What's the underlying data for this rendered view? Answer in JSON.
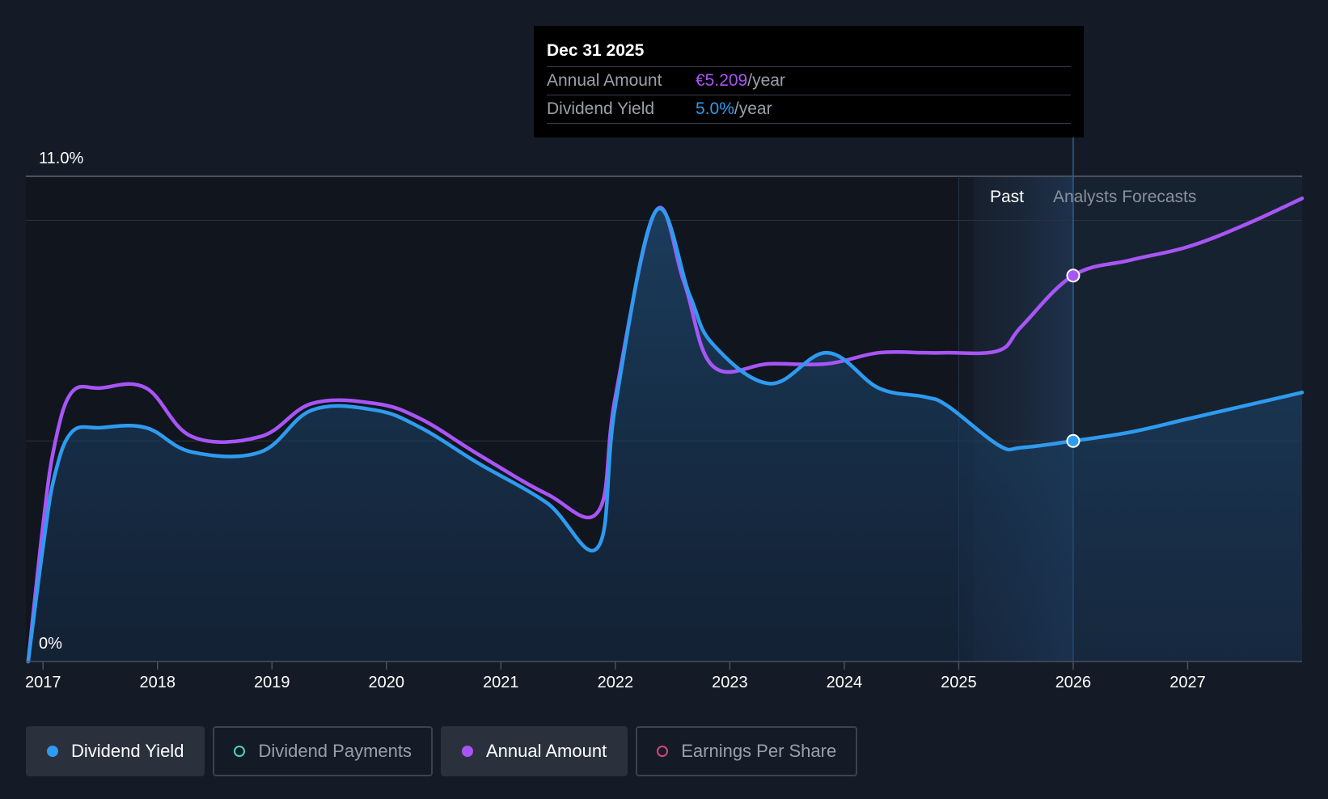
{
  "tooltip": {
    "date": "Dec 31 2025",
    "rows": [
      {
        "label": "Annual Amount",
        "value": "€5.209",
        "unit": "/year"
      },
      {
        "label": "Dividend Yield",
        "value": "5.0%",
        "unit": "/year"
      }
    ]
  },
  "chart_data": {
    "type": "line",
    "y_top_label": "11.0%",
    "y_bottom_label": "0%",
    "ylim": [
      0,
      11
    ],
    "xlim": [
      2016.85,
      2028.0
    ],
    "x_ticks": [
      "2017",
      "2018",
      "2019",
      "2020",
      "2021",
      "2022",
      "2023",
      "2024",
      "2025",
      "2026",
      "2027"
    ],
    "grid": true,
    "region_labels": {
      "past": "Past",
      "forecast": "Analysts Forecasts"
    },
    "past_start": 2025.0,
    "forecast_start": 2026.0,
    "series": [
      {
        "name": "Dividend Yield",
        "color": "#2e9bf0",
        "area": true,
        "points": [
          [
            2016.87,
            0
          ],
          [
            2017.0,
            2.6
          ],
          [
            2017.1,
            4.2
          ],
          [
            2017.25,
            5.2
          ],
          [
            2017.5,
            5.3
          ],
          [
            2017.9,
            5.3
          ],
          [
            2018.3,
            4.75
          ],
          [
            2018.9,
            4.75
          ],
          [
            2019.35,
            5.7
          ],
          [
            2019.9,
            5.7
          ],
          [
            2020.3,
            5.3
          ],
          [
            2020.8,
            4.5
          ],
          [
            2021.4,
            3.6
          ],
          [
            2021.85,
            2.6
          ],
          [
            2022.0,
            5.8
          ],
          [
            2022.35,
            10.2
          ],
          [
            2022.65,
            8.3
          ],
          [
            2022.85,
            7.2
          ],
          [
            2023.35,
            6.3
          ],
          [
            2023.85,
            7.0
          ],
          [
            2024.3,
            6.2
          ],
          [
            2024.7,
            6.0
          ],
          [
            2024.9,
            5.8
          ],
          [
            2025.35,
            4.9
          ],
          [
            2025.55,
            4.85
          ],
          [
            2026.0,
            5.0
          ],
          [
            2026.5,
            5.2
          ],
          [
            2027.0,
            5.5
          ],
          [
            2027.5,
            5.8
          ],
          [
            2028.0,
            6.1
          ]
        ]
      },
      {
        "name": "Annual Amount",
        "color": "#a855f7",
        "area": false,
        "points": [
          [
            2016.87,
            0
          ],
          [
            2017.0,
            3.1
          ],
          [
            2017.1,
            4.9
          ],
          [
            2017.25,
            6.1
          ],
          [
            2017.5,
            6.2
          ],
          [
            2017.9,
            6.2
          ],
          [
            2018.3,
            5.1
          ],
          [
            2018.9,
            5.1
          ],
          [
            2019.35,
            5.85
          ],
          [
            2019.9,
            5.85
          ],
          [
            2020.3,
            5.5
          ],
          [
            2020.8,
            4.7
          ],
          [
            2021.4,
            3.8
          ],
          [
            2021.85,
            3.4
          ],
          [
            2022.0,
            6.0
          ],
          [
            2022.35,
            10.2
          ],
          [
            2022.6,
            8.6
          ],
          [
            2022.85,
            6.7
          ],
          [
            2023.35,
            6.75
          ],
          [
            2023.85,
            6.75
          ],
          [
            2024.3,
            7.0
          ],
          [
            2024.7,
            7.0
          ],
          [
            2024.9,
            7.0
          ],
          [
            2025.35,
            7.05
          ],
          [
            2025.55,
            7.6
          ],
          [
            2026.0,
            8.75
          ],
          [
            2026.5,
            9.1
          ],
          [
            2027.0,
            9.4
          ],
          [
            2027.5,
            9.9
          ],
          [
            2028.0,
            10.5
          ]
        ]
      }
    ],
    "markers": [
      {
        "series": "Annual Amount",
        "x": 2026.0,
        "y": 8.75
      },
      {
        "series": "Dividend Yield",
        "x": 2026.0,
        "y": 5.0
      }
    ]
  },
  "legend": [
    {
      "label": "Dividend Yield",
      "active": true,
      "color": "#2e9bf0",
      "filled": true
    },
    {
      "label": "Dividend Payments",
      "active": false,
      "color": "#4fd1c5",
      "filled": false
    },
    {
      "label": "Annual Amount",
      "active": true,
      "color": "#a855f7",
      "filled": true
    },
    {
      "label": "Earnings Per Share",
      "active": false,
      "color": "#d6457a",
      "filled": false
    }
  ]
}
